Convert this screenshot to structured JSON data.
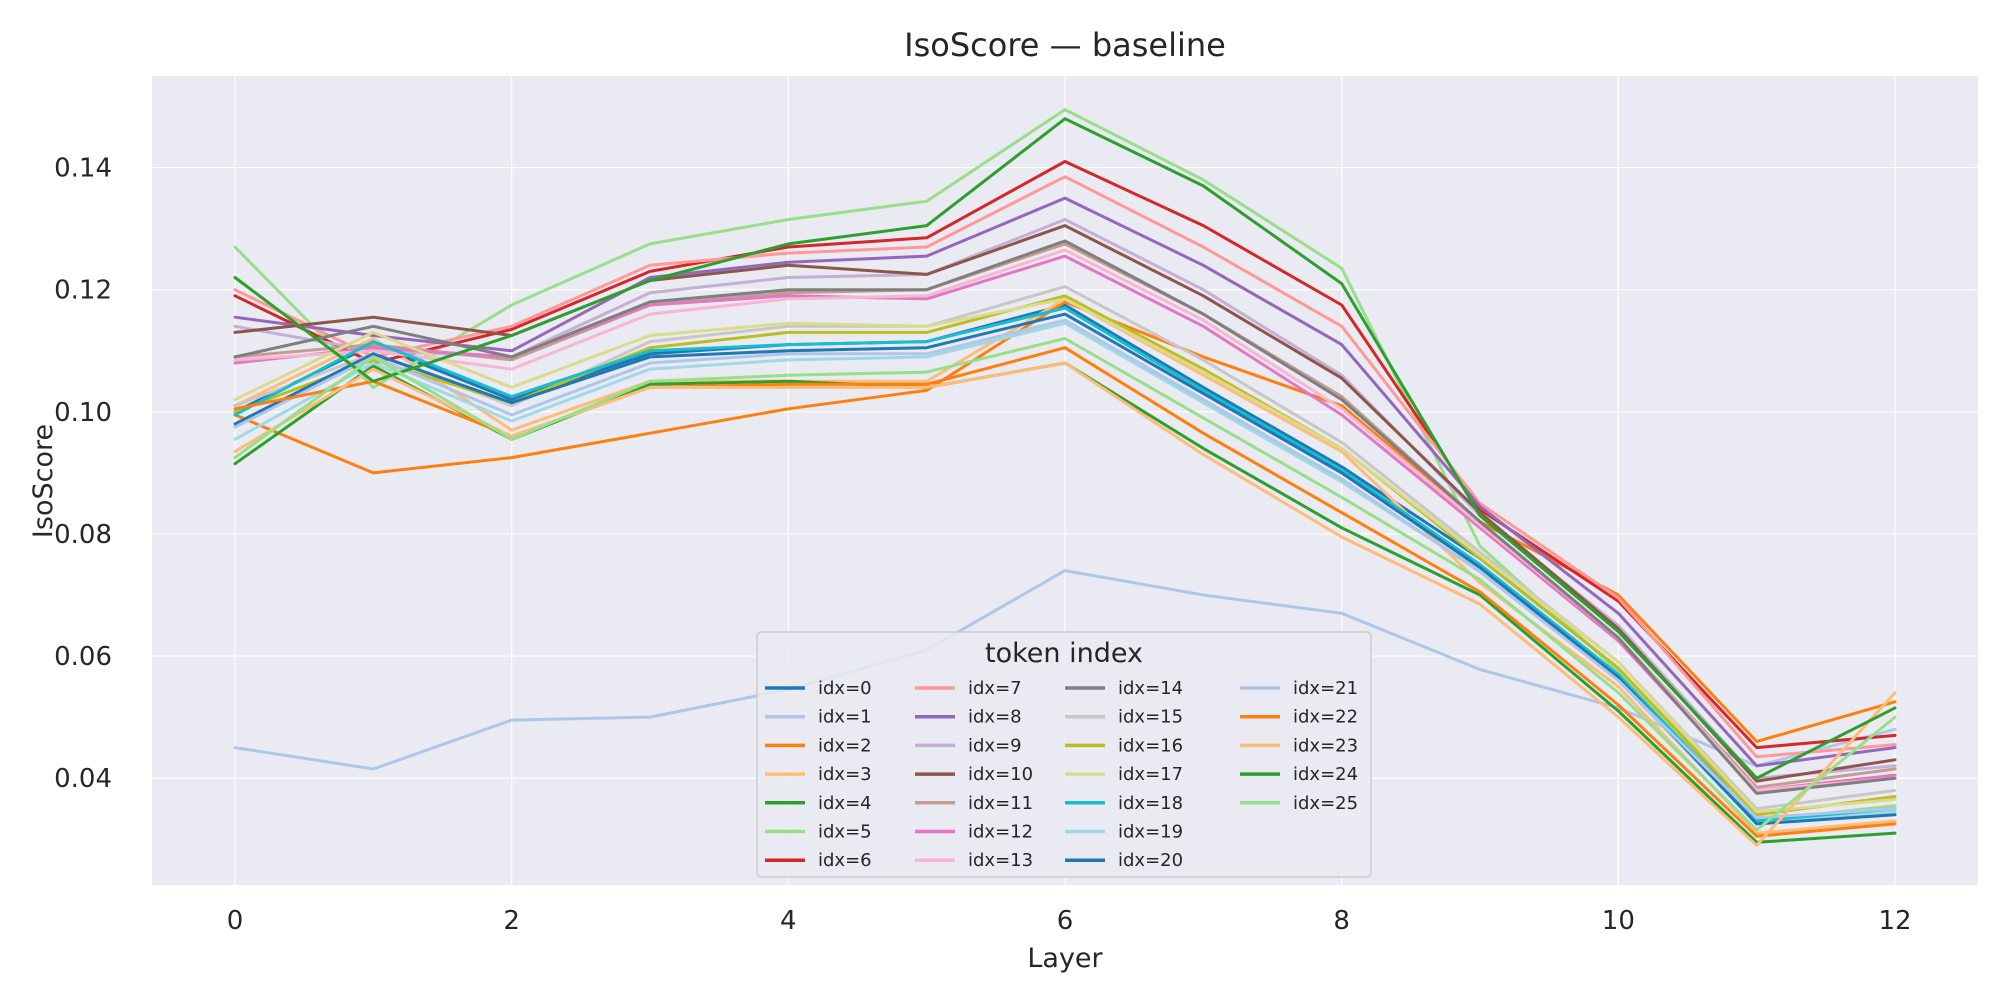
{
  "chart_data": {
    "type": "line",
    "title": "IsoScore — baseline",
    "xlabel": "Layer",
    "ylabel": "IsoScore",
    "xlim": [
      -0.6,
      12.6
    ],
    "ylim": [
      0.0225,
      0.155
    ],
    "xticks": [
      0,
      2,
      4,
      6,
      8,
      10,
      12
    ],
    "yticks": [
      0.04,
      0.06,
      0.08,
      0.1,
      0.12,
      0.14
    ],
    "ytick_labels": [
      "0.04",
      "0.06",
      "0.08",
      "0.10",
      "0.12",
      "0.14"
    ],
    "grid": true,
    "legend": {
      "title": "token index",
      "placement": "lower-center",
      "ncol": 4
    },
    "x": [
      0,
      1,
      2,
      3,
      4,
      5,
      6,
      7,
      8,
      9,
      10,
      11,
      12
    ],
    "series": [
      {
        "name": "idx=0",
        "color": "#1f77b4",
        "values": [
          0.1,
          0.111,
          0.102,
          0.1095,
          0.111,
          0.1115,
          0.1175,
          0.104,
          0.091,
          0.076,
          0.058,
          0.033,
          0.035
        ]
      },
      {
        "name": "idx=1",
        "color": "#aec7e8",
        "values": [
          0.045,
          0.0415,
          0.0495,
          0.05,
          0.0545,
          0.061,
          0.074,
          0.07,
          0.067,
          0.0578,
          0.0515,
          0.042,
          0.048
        ]
      },
      {
        "name": "idx=2",
        "color": "#ff7f0e",
        "values": [
          0.0995,
          0.09,
          0.0925,
          0.0965,
          0.1005,
          0.1035,
          0.118,
          0.109,
          0.101,
          0.082,
          0.07,
          0.046,
          0.0525
        ]
      },
      {
        "name": "idx=3",
        "color": "#ffbb78",
        "values": [
          0.101,
          0.112,
          0.097,
          0.105,
          0.105,
          0.105,
          0.1185,
          0.106,
          0.0935,
          0.072,
          0.055,
          0.031,
          0.033
        ]
      },
      {
        "name": "idx=4",
        "color": "#2ca02c",
        "values": [
          0.0915,
          0.1075,
          0.0955,
          0.1045,
          0.105,
          0.104,
          0.108,
          0.094,
          0.081,
          0.07,
          0.051,
          0.0295,
          0.031
        ]
      },
      {
        "name": "idx=5",
        "color": "#98df8a",
        "values": [
          0.127,
          0.104,
          0.1175,
          0.1275,
          0.1315,
          0.1345,
          0.1495,
          0.138,
          0.1235,
          0.078,
          0.0575,
          0.033,
          0.0355
        ]
      },
      {
        "name": "idx=6",
        "color": "#d62728",
        "values": [
          0.119,
          0.108,
          0.1135,
          0.123,
          0.127,
          0.1285,
          0.141,
          0.1305,
          0.1175,
          0.084,
          0.069,
          0.045,
          0.047
        ]
      },
      {
        "name": "idx=7",
        "color": "#ff9896",
        "values": [
          0.12,
          0.109,
          0.114,
          0.124,
          0.126,
          0.127,
          0.1385,
          0.127,
          0.114,
          0.085,
          0.0695,
          0.0435,
          0.0455
        ]
      },
      {
        "name": "idx=8",
        "color": "#9467bd",
        "values": [
          0.1155,
          0.1125,
          0.11,
          0.122,
          0.1245,
          0.1255,
          0.135,
          0.124,
          0.111,
          0.0845,
          0.067,
          0.042,
          0.045
        ]
      },
      {
        "name": "idx=9",
        "color": "#c5b0d5",
        "values": [
          0.114,
          0.11,
          0.109,
          0.1195,
          0.122,
          0.1225,
          0.1315,
          0.12,
          0.106,
          0.083,
          0.065,
          0.04,
          0.042
        ]
      },
      {
        "name": "idx=10",
        "color": "#8c564b",
        "values": [
          0.113,
          0.1155,
          0.1125,
          0.1215,
          0.124,
          0.1225,
          0.1305,
          0.119,
          0.1055,
          0.0835,
          0.0645,
          0.0395,
          0.043
        ]
      },
      {
        "name": "idx=11",
        "color": "#c49c94",
        "values": [
          0.109,
          0.111,
          0.1085,
          0.1175,
          0.1195,
          0.12,
          0.1275,
          0.116,
          0.1025,
          0.082,
          0.063,
          0.0385,
          0.0415
        ]
      },
      {
        "name": "idx=12",
        "color": "#e377c2",
        "values": [
          0.108,
          0.1105,
          0.109,
          0.1175,
          0.119,
          0.1185,
          0.1255,
          0.114,
          0.0995,
          0.081,
          0.0625,
          0.038,
          0.0405
        ]
      },
      {
        "name": "idx=13",
        "color": "#f7b6d2",
        "values": [
          0.1085,
          0.11,
          0.107,
          0.116,
          0.1185,
          0.119,
          0.1265,
          0.115,
          0.1005,
          0.0815,
          0.063,
          0.038,
          0.04
        ]
      },
      {
        "name": "idx=14",
        "color": "#7f7f7f",
        "values": [
          0.109,
          0.114,
          0.109,
          0.118,
          0.12,
          0.12,
          0.128,
          0.116,
          0.102,
          0.082,
          0.063,
          0.0375,
          0.04
        ]
      },
      {
        "name": "idx=15",
        "color": "#c7c7c7",
        "values": [
          0.101,
          0.1095,
          0.101,
          0.1115,
          0.114,
          0.114,
          0.1205,
          0.1085,
          0.095,
          0.077,
          0.059,
          0.035,
          0.038
        ]
      },
      {
        "name": "idx=16",
        "color": "#bcbd22",
        "values": [
          0.1,
          0.1085,
          0.1015,
          0.1105,
          0.113,
          0.113,
          0.119,
          0.107,
          0.094,
          0.076,
          0.058,
          0.034,
          0.037
        ]
      },
      {
        "name": "idx=17",
        "color": "#dbdb8d",
        "values": [
          0.102,
          0.113,
          0.104,
          0.1125,
          0.1145,
          0.114,
          0.1185,
          0.1065,
          0.094,
          0.0765,
          0.059,
          0.0345,
          0.0365
        ]
      },
      {
        "name": "idx=18",
        "color": "#17becf",
        "values": [
          0.0995,
          0.1115,
          0.1025,
          0.11,
          0.111,
          0.1115,
          0.117,
          0.1035,
          0.0905,
          0.075,
          0.057,
          0.033,
          0.035
        ]
      },
      {
        "name": "idx=19",
        "color": "#9edae5",
        "values": [
          0.0955,
          0.108,
          0.0985,
          0.107,
          0.1085,
          0.109,
          0.1145,
          0.1015,
          0.0885,
          0.074,
          0.056,
          0.0325,
          0.0345
        ]
      },
      {
        "name": "idx=20",
        "color": "#1f77b4",
        "values": [
          0.098,
          0.1095,
          0.1015,
          0.109,
          0.11,
          0.1105,
          0.116,
          0.103,
          0.09,
          0.0745,
          0.0565,
          0.0325,
          0.034
        ]
      },
      {
        "name": "idx=21",
        "color": "#aec7e8",
        "values": [
          0.0975,
          0.109,
          0.0995,
          0.108,
          0.1095,
          0.1095,
          0.115,
          0.102,
          0.089,
          0.0738,
          0.056,
          0.0335,
          0.035
        ]
      },
      {
        "name": "idx=22",
        "color": "#ff7f0e",
        "values": [
          0.1005,
          0.105,
          0.096,
          0.104,
          0.1045,
          0.1045,
          0.1105,
          0.0965,
          0.0835,
          0.0705,
          0.052,
          0.0305,
          0.0325
        ]
      },
      {
        "name": "idx=23",
        "color": "#ffbb78",
        "values": [
          0.0935,
          0.107,
          0.096,
          0.104,
          0.104,
          0.104,
          0.108,
          0.093,
          0.0795,
          0.0685,
          0.05,
          0.029,
          0.054
        ]
      },
      {
        "name": "idx=24",
        "color": "#2ca02c",
        "values": [
          0.122,
          0.105,
          0.1125,
          0.1215,
          0.1275,
          0.1305,
          0.148,
          0.137,
          0.121,
          0.083,
          0.064,
          0.04,
          0.0515
        ]
      },
      {
        "name": "idx=25",
        "color": "#98df8a",
        "values": [
          0.0925,
          0.109,
          0.0955,
          0.105,
          0.106,
          0.1065,
          0.112,
          0.099,
          0.086,
          0.0725,
          0.054,
          0.0315,
          0.05
        ]
      }
    ]
  }
}
